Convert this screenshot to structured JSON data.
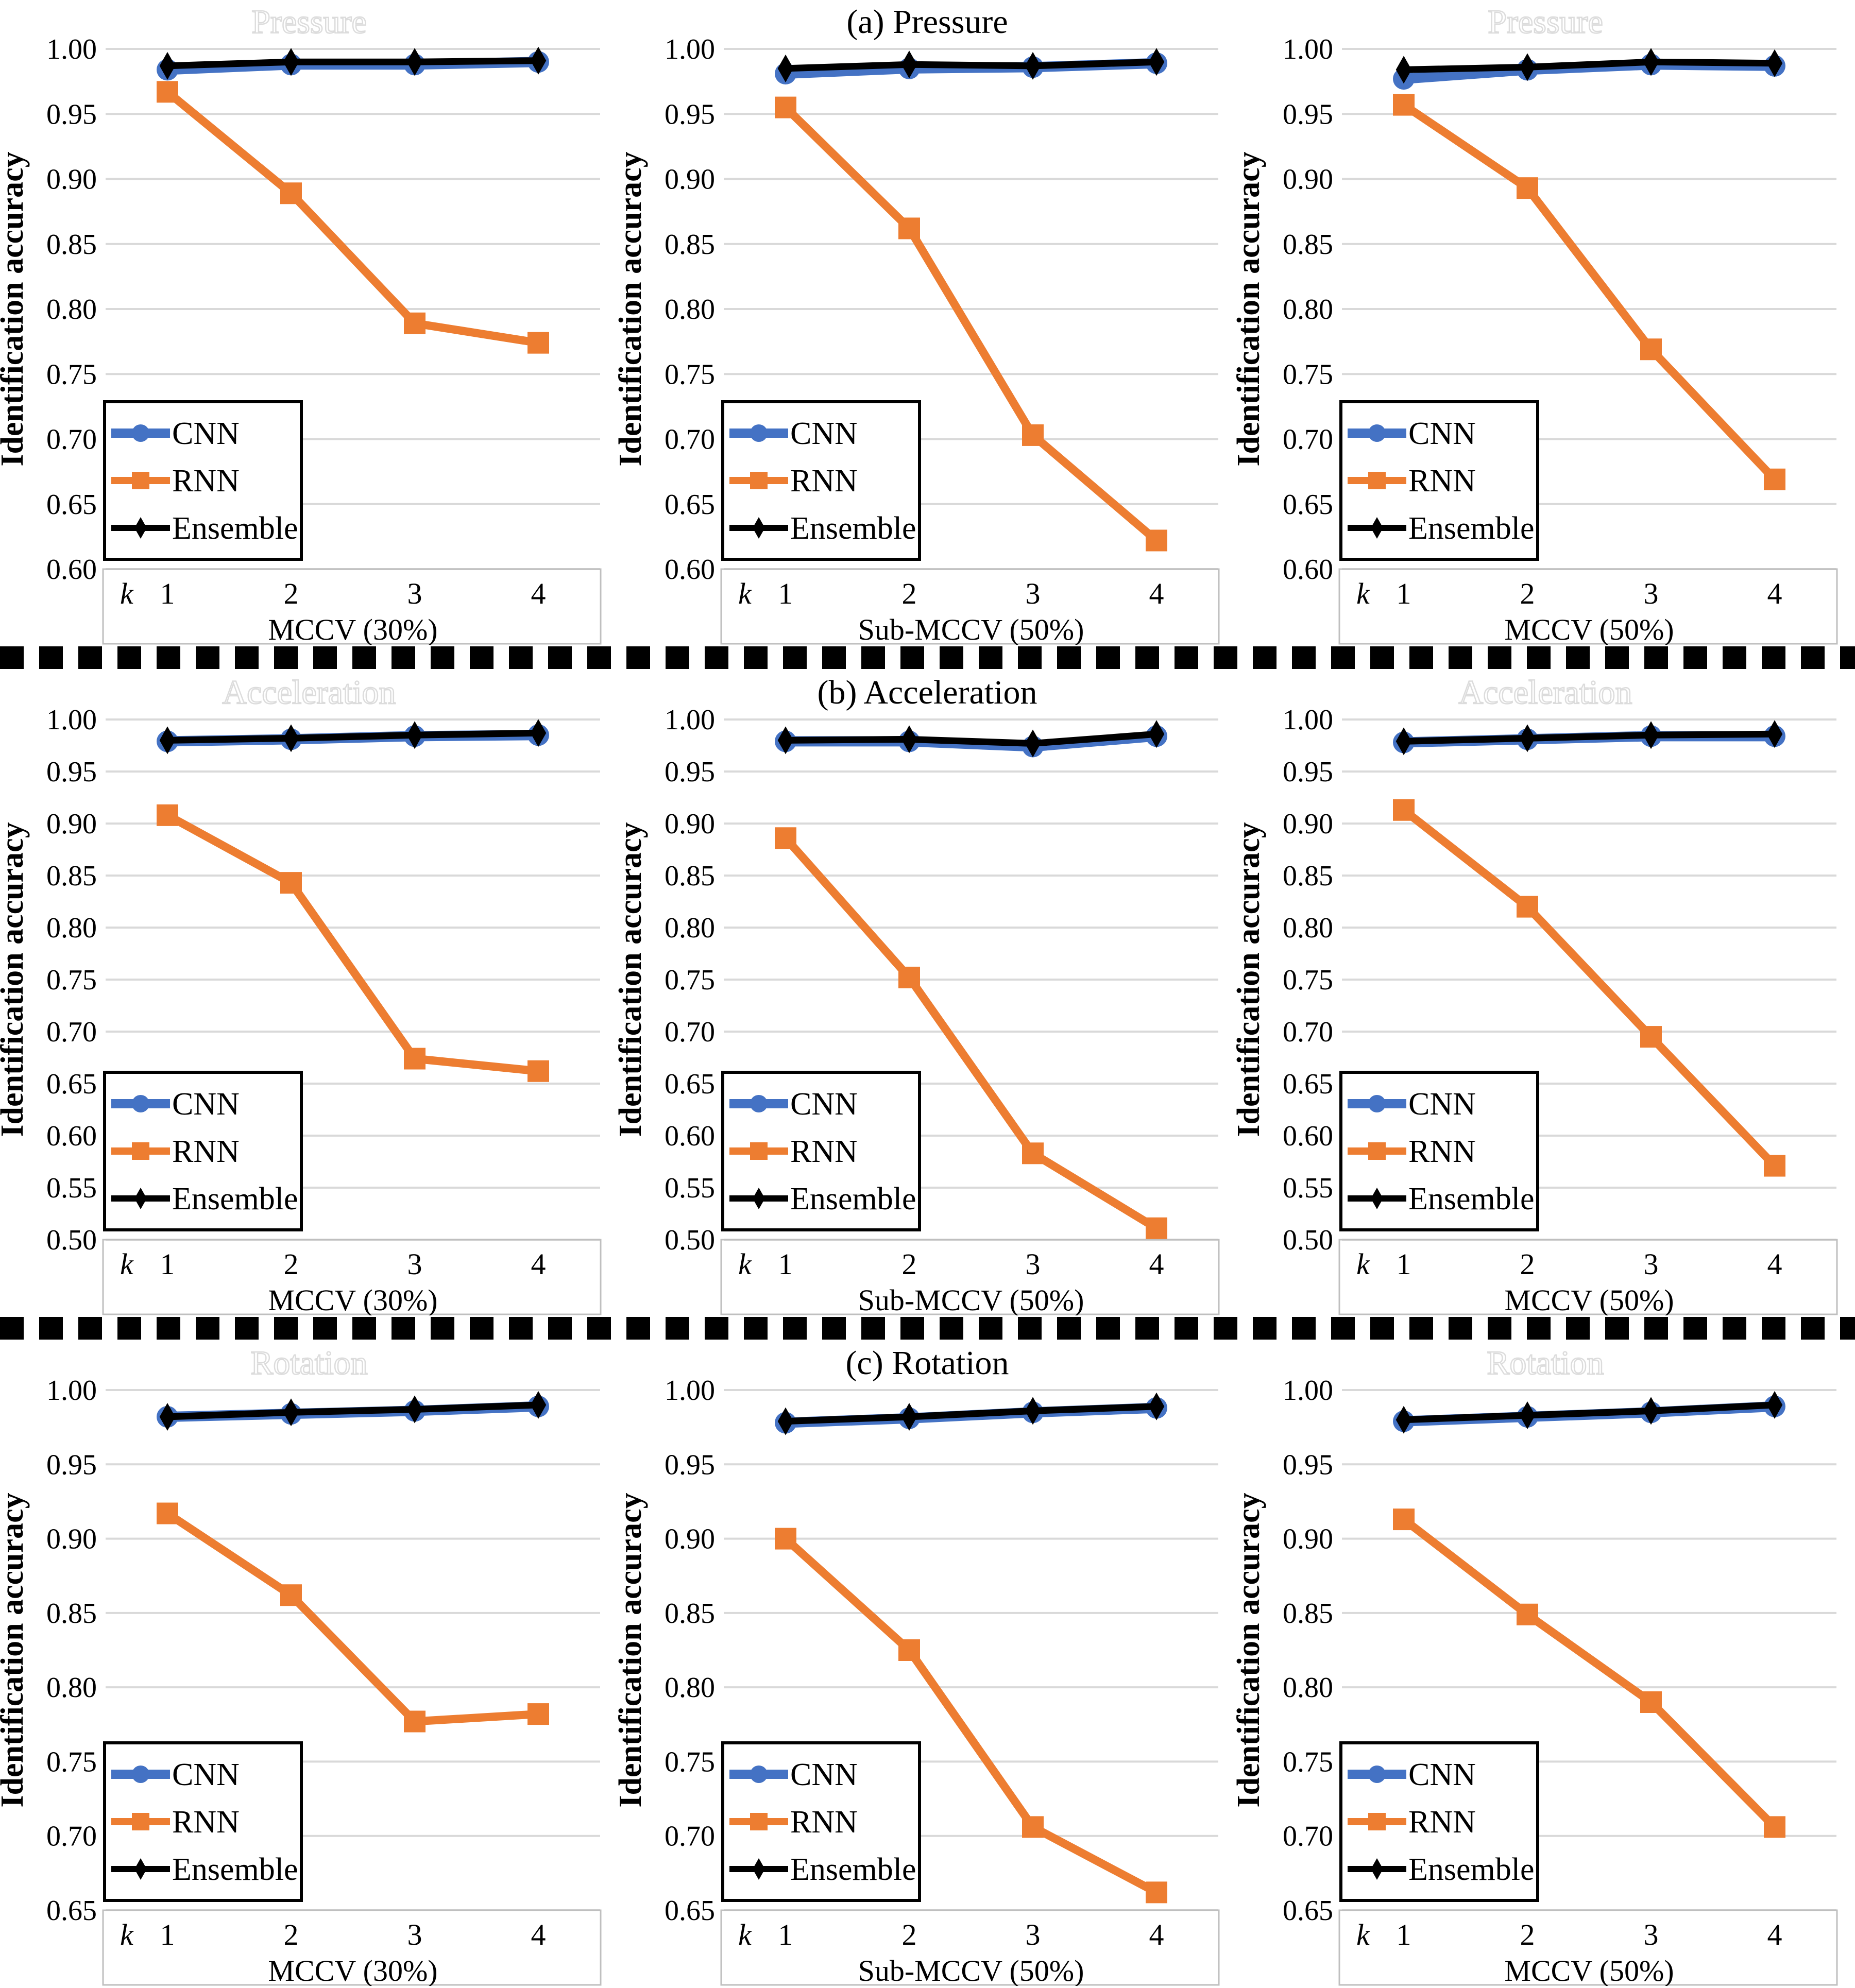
{
  "figure": {
    "ylabel": "Identification accuracy",
    "k_label": "k",
    "xticks": [
      "1",
      "2",
      "3",
      "4"
    ],
    "colors": {
      "cnn": "#4472C4",
      "rnn": "#ED7D31",
      "ensemble": "#000000",
      "gridline": "#D9D9D9",
      "axis_box_border": "#BFBFBF",
      "ghost_title_outline": "#DCDCDC"
    }
  },
  "legend": {
    "items": [
      {
        "label": "CNN",
        "color": "#4472C4",
        "marker": "circle"
      },
      {
        "label": "RNN",
        "color": "#ED7D31",
        "marker": "square"
      },
      {
        "label": "Ensemble",
        "color": "#000000",
        "marker": "diamond"
      }
    ]
  },
  "chart_data": [
    {
      "type": "line",
      "row": 0,
      "col": 0,
      "title": "Pressure",
      "title_style": "ghost",
      "xlabel": "MCCV (30%)",
      "ylabel": "Identification accuracy",
      "x": [
        1,
        2,
        3,
        4
      ],
      "ylim": [
        0.6,
        1.0
      ],
      "yticks": [
        "1.00",
        "0.95",
        "0.90",
        "0.85",
        "0.80",
        "0.75",
        "0.70",
        "0.65",
        "0.60"
      ],
      "series": [
        {
          "name": "CNN",
          "color": "#4472C4",
          "marker": "circle",
          "values": [
            0.984,
            0.988,
            0.988,
            0.99
          ]
        },
        {
          "name": "RNN",
          "color": "#ED7D31",
          "marker": "square",
          "values": [
            0.967,
            0.889,
            0.789,
            0.774
          ]
        },
        {
          "name": "Ensemble",
          "color": "#000000",
          "marker": "diamond",
          "values": [
            0.987,
            0.99,
            0.99,
            0.991
          ]
        }
      ]
    },
    {
      "type": "line",
      "row": 0,
      "col": 1,
      "title": "(a) Pressure",
      "title_style": "caption",
      "xlabel": "Sub-MCCV (50%)",
      "ylabel": "Identification accuracy",
      "x": [
        1,
        2,
        3,
        4
      ],
      "ylim": [
        0.6,
        1.0
      ],
      "yticks": [
        "1.00",
        "0.95",
        "0.90",
        "0.85",
        "0.80",
        "0.75",
        "0.70",
        "0.65",
        "0.60"
      ],
      "series": [
        {
          "name": "CNN",
          "color": "#4472C4",
          "marker": "circle",
          "values": [
            0.981,
            0.985,
            0.986,
            0.989
          ]
        },
        {
          "name": "RNN",
          "color": "#ED7D31",
          "marker": "square",
          "values": [
            0.955,
            0.862,
            0.703,
            0.622
          ]
        },
        {
          "name": "Ensemble",
          "color": "#000000",
          "marker": "diamond",
          "values": [
            0.985,
            0.988,
            0.987,
            0.99
          ]
        }
      ]
    },
    {
      "type": "line",
      "row": 0,
      "col": 2,
      "title": "Pressure",
      "title_style": "ghost",
      "xlabel": "MCCV (50%)",
      "ylabel": "Identification accuracy",
      "x": [
        1,
        2,
        3,
        4
      ],
      "ylim": [
        0.6,
        1.0
      ],
      "yticks": [
        "1.00",
        "0.95",
        "0.90",
        "0.85",
        "0.80",
        "0.75",
        "0.70",
        "0.65",
        "0.60"
      ],
      "series": [
        {
          "name": "CNN",
          "color": "#4472C4",
          "marker": "circle",
          "values": [
            0.977,
            0.984,
            0.988,
            0.987
          ]
        },
        {
          "name": "RNN",
          "color": "#ED7D31",
          "marker": "square",
          "values": [
            0.957,
            0.893,
            0.769,
            0.669
          ]
        },
        {
          "name": "Ensemble",
          "color": "#000000",
          "marker": "diamond",
          "values": [
            0.984,
            0.986,
            0.99,
            0.989
          ]
        }
      ]
    },
    {
      "type": "line",
      "row": 1,
      "col": 0,
      "title": "Acceleration",
      "title_style": "ghost",
      "xlabel": "MCCV (30%)",
      "ylabel": "Identification accuracy",
      "x": [
        1,
        2,
        3,
        4
      ],
      "ylim": [
        0.5,
        1.0
      ],
      "yticks": [
        "1.00",
        "0.95",
        "0.90",
        "0.85",
        "0.80",
        "0.75",
        "0.70",
        "0.65",
        "0.60",
        "0.55",
        "0.50"
      ],
      "series": [
        {
          "name": "CNN",
          "color": "#4472C4",
          "marker": "circle",
          "values": [
            0.979,
            0.981,
            0.984,
            0.985
          ]
        },
        {
          "name": "RNN",
          "color": "#ED7D31",
          "marker": "square",
          "values": [
            0.908,
            0.843,
            0.674,
            0.662
          ]
        },
        {
          "name": "Ensemble",
          "color": "#000000",
          "marker": "diamond",
          "values": [
            0.98,
            0.982,
            0.985,
            0.987
          ]
        }
      ]
    },
    {
      "type": "line",
      "row": 1,
      "col": 1,
      "title": "(b) Acceleration",
      "title_style": "caption",
      "xlabel": "Sub-MCCV (50%)",
      "ylabel": "Identification accuracy",
      "x": [
        1,
        2,
        3,
        4
      ],
      "ylim": [
        0.5,
        1.0
      ],
      "yticks": [
        "1.00",
        "0.95",
        "0.90",
        "0.85",
        "0.80",
        "0.75",
        "0.70",
        "0.65",
        "0.60",
        "0.55",
        "0.50"
      ],
      "series": [
        {
          "name": "CNN",
          "color": "#4472C4",
          "marker": "circle",
          "values": [
            0.979,
            0.979,
            0.974,
            0.984
          ]
        },
        {
          "name": "RNN",
          "color": "#ED7D31",
          "marker": "square",
          "values": [
            0.886,
            0.752,
            0.583,
            0.511
          ]
        },
        {
          "name": "Ensemble",
          "color": "#000000",
          "marker": "diamond",
          "values": [
            0.98,
            0.981,
            0.977,
            0.986
          ]
        }
      ]
    },
    {
      "type": "line",
      "row": 1,
      "col": 2,
      "title": "Acceleration",
      "title_style": "ghost",
      "xlabel": "MCCV (50%)",
      "ylabel": "Identification accuracy",
      "x": [
        1,
        2,
        3,
        4
      ],
      "ylim": [
        0.5,
        1.0
      ],
      "yticks": [
        "1.00",
        "0.95",
        "0.90",
        "0.85",
        "0.80",
        "0.75",
        "0.70",
        "0.65",
        "0.60",
        "0.55",
        "0.50"
      ],
      "series": [
        {
          "name": "CNN",
          "color": "#4472C4",
          "marker": "circle",
          "values": [
            0.978,
            0.981,
            0.984,
            0.984
          ]
        },
        {
          "name": "RNN",
          "color": "#ED7D31",
          "marker": "square",
          "values": [
            0.913,
            0.82,
            0.695,
            0.571
          ]
        },
        {
          "name": "Ensemble",
          "color": "#000000",
          "marker": "diamond",
          "values": [
            0.979,
            0.982,
            0.985,
            0.986
          ]
        }
      ]
    },
    {
      "type": "line",
      "row": 2,
      "col": 0,
      "title": "Rotation",
      "title_style": "ghost",
      "xlabel": "MCCV (30%)",
      "ylabel": "Identification accuracy",
      "x": [
        1,
        2,
        3,
        4
      ],
      "ylim": [
        0.65,
        1.0
      ],
      "yticks": [
        "1.00",
        "0.95",
        "0.90",
        "0.85",
        "0.80",
        "0.75",
        "0.70",
        "0.65"
      ],
      "series": [
        {
          "name": "CNN",
          "color": "#4472C4",
          "marker": "circle",
          "values": [
            0.982,
            0.984,
            0.986,
            0.989
          ]
        },
        {
          "name": "RNN",
          "color": "#ED7D31",
          "marker": "square",
          "values": [
            0.917,
            0.862,
            0.777,
            0.782
          ]
        },
        {
          "name": "Ensemble",
          "color": "#000000",
          "marker": "diamond",
          "values": [
            0.982,
            0.985,
            0.987,
            0.99
          ]
        }
      ]
    },
    {
      "type": "line",
      "row": 2,
      "col": 1,
      "title": "(c) Rotation",
      "title_style": "caption",
      "xlabel": "Sub-MCCV (50%)",
      "ylabel": "Identification accuracy",
      "x": [
        1,
        2,
        3,
        4
      ],
      "ylim": [
        0.65,
        1.0
      ],
      "yticks": [
        "1.00",
        "0.95",
        "0.90",
        "0.85",
        "0.80",
        "0.75",
        "0.70",
        "0.65"
      ],
      "series": [
        {
          "name": "CNN",
          "color": "#4472C4",
          "marker": "circle",
          "values": [
            0.978,
            0.981,
            0.985,
            0.988
          ]
        },
        {
          "name": "RNN",
          "color": "#ED7D31",
          "marker": "square",
          "values": [
            0.9,
            0.825,
            0.706,
            0.662
          ]
        },
        {
          "name": "Ensemble",
          "color": "#000000",
          "marker": "diamond",
          "values": [
            0.979,
            0.982,
            0.986,
            0.989
          ]
        }
      ]
    },
    {
      "type": "line",
      "row": 2,
      "col": 2,
      "title": "Rotation",
      "title_style": "ghost",
      "xlabel": "MCCV (50%)",
      "ylabel": "Identification accuracy",
      "x": [
        1,
        2,
        3,
        4
      ],
      "ylim": [
        0.65,
        1.0
      ],
      "yticks": [
        "1.00",
        "0.95",
        "0.90",
        "0.85",
        "0.80",
        "0.75",
        "0.70",
        "0.65"
      ],
      "series": [
        {
          "name": "CNN",
          "color": "#4472C4",
          "marker": "circle",
          "values": [
            0.979,
            0.982,
            0.985,
            0.989
          ]
        },
        {
          "name": "RNN",
          "color": "#ED7D31",
          "marker": "square",
          "values": [
            0.913,
            0.849,
            0.79,
            0.706
          ]
        },
        {
          "name": "Ensemble",
          "color": "#000000",
          "marker": "diamond",
          "values": [
            0.98,
            0.983,
            0.986,
            0.99
          ]
        }
      ]
    }
  ]
}
